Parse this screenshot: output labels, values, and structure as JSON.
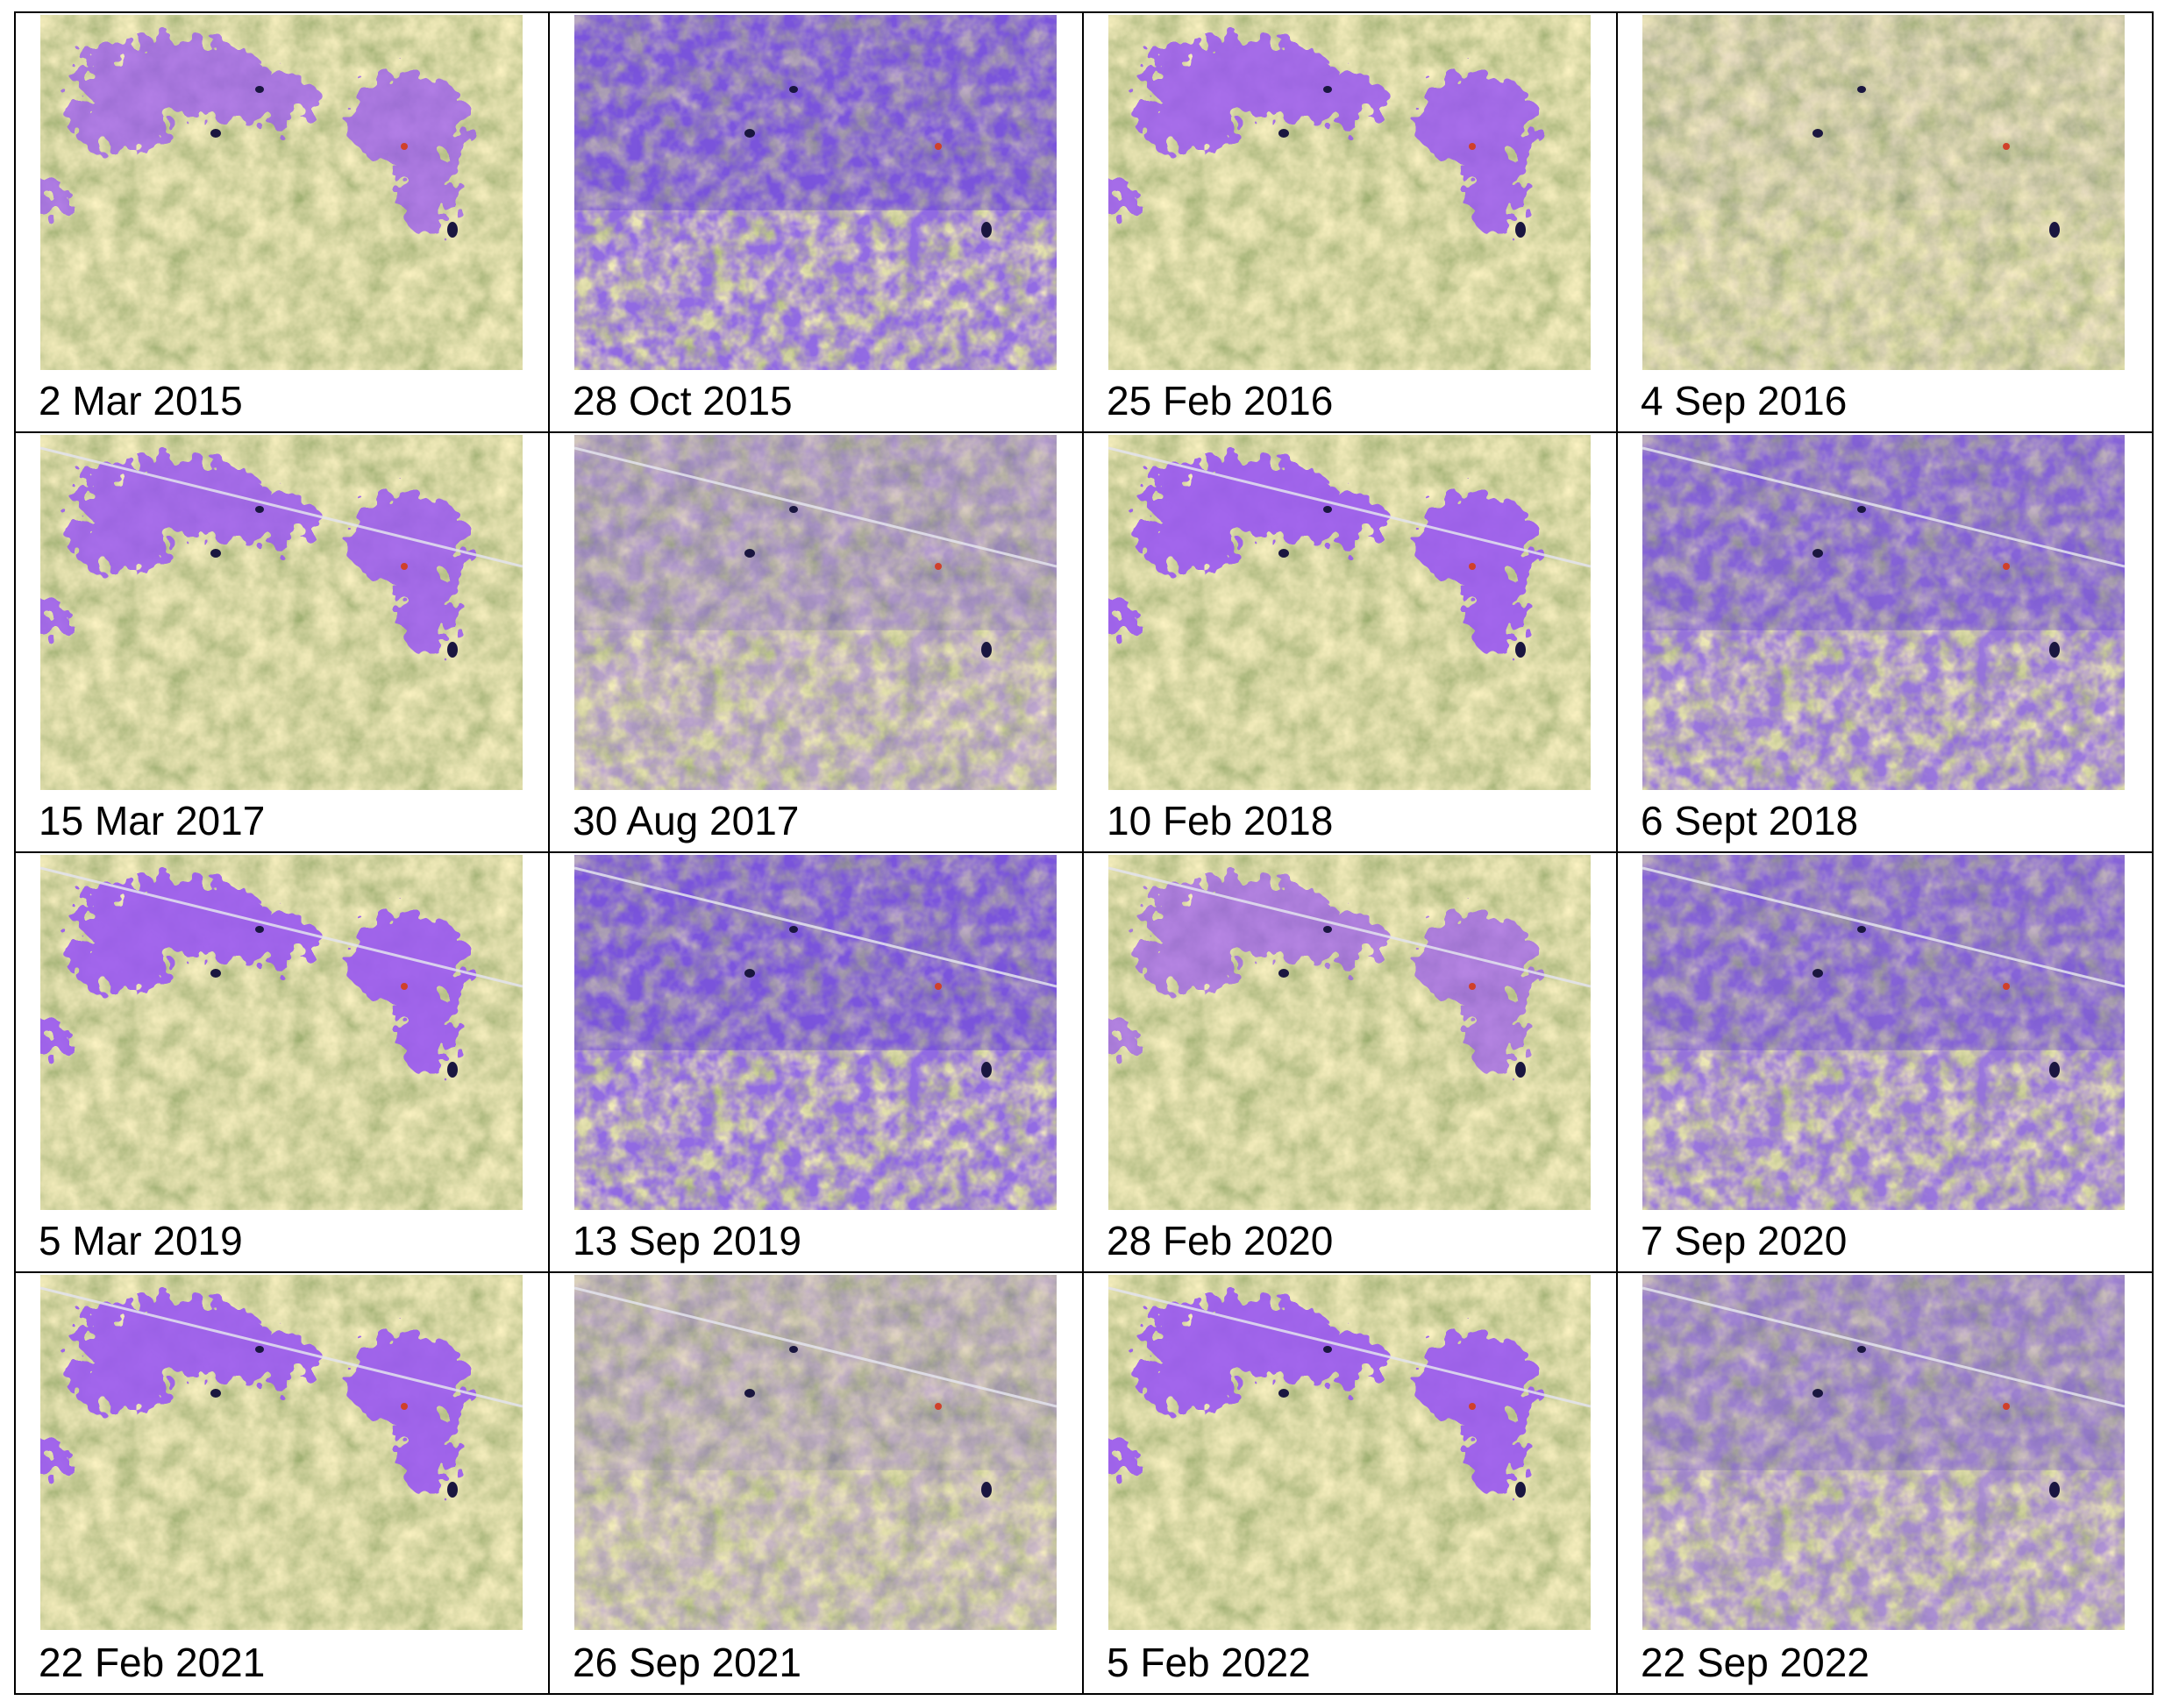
{
  "cells": [
    {
      "label": "2 Mar 2015"
    },
    {
      "label": "28 Oct 2015"
    },
    {
      "label": "25 Feb 2016"
    },
    {
      "label": "4 Sep 2016"
    },
    {
      "label": "15 Mar 2017"
    },
    {
      "label": "30 Aug 2017"
    },
    {
      "label": "10 Feb 2018"
    },
    {
      "label": "6 Sept 2018"
    },
    {
      "label": "5 Mar 2019"
    },
    {
      "label": "13 Sep 2019"
    },
    {
      "label": "28 Feb 2020"
    },
    {
      "label": "7 Sep 2020"
    },
    {
      "label": "22 Feb 2021"
    },
    {
      "label": "26 Sep 2021"
    },
    {
      "label": "5 Feb 2022"
    },
    {
      "label": "22 Sep 2022"
    }
  ]
}
